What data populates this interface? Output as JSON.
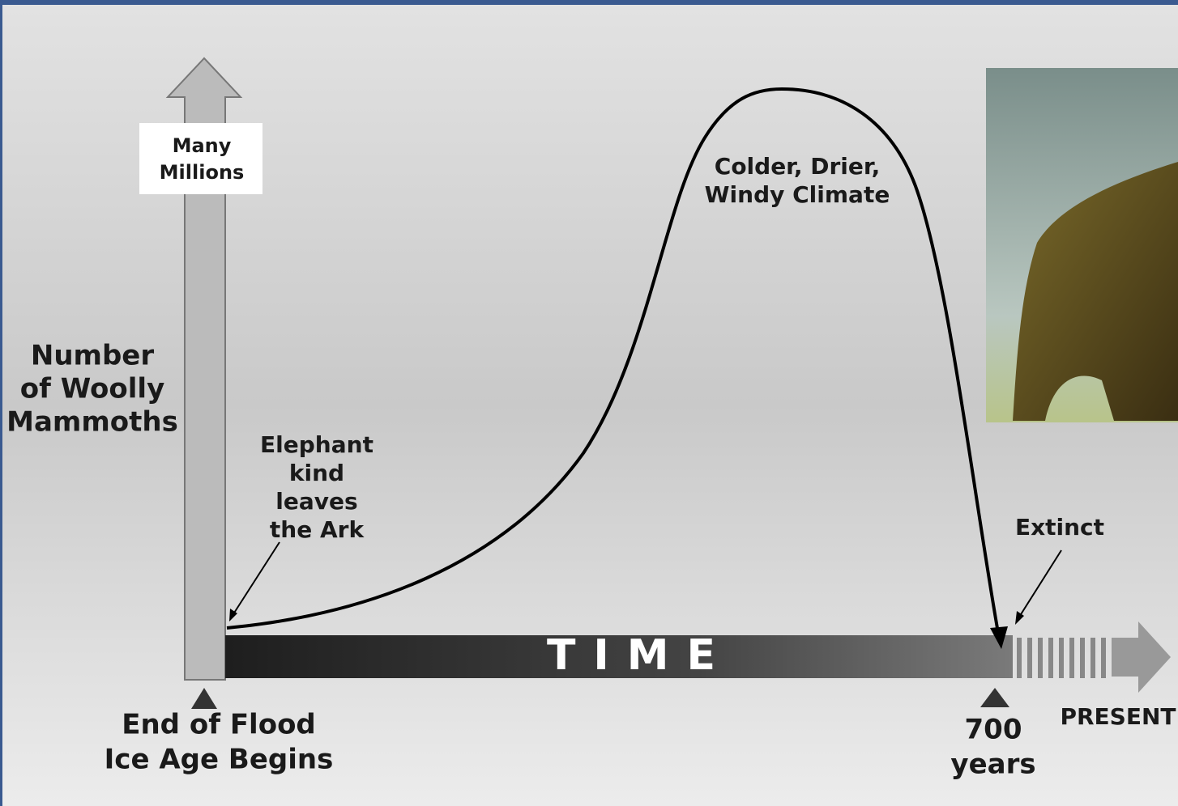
{
  "y_axis": {
    "label": [
      "Number",
      "of Woolly",
      "Mammoths"
    ],
    "top_label": [
      "Many",
      "Millions"
    ]
  },
  "x_axis": {
    "label": "TIME",
    "start_label": [
      "End of Flood",
      "Ice Age Begins"
    ],
    "end_label": [
      "700",
      "years"
    ],
    "present_label": "PRESENT"
  },
  "annotations": {
    "start": [
      "Elephant",
      "kind",
      "leaves",
      "the Ark"
    ],
    "peak": [
      "Colder, Drier,",
      "Windy Climate"
    ],
    "end": "Extinct"
  }
}
